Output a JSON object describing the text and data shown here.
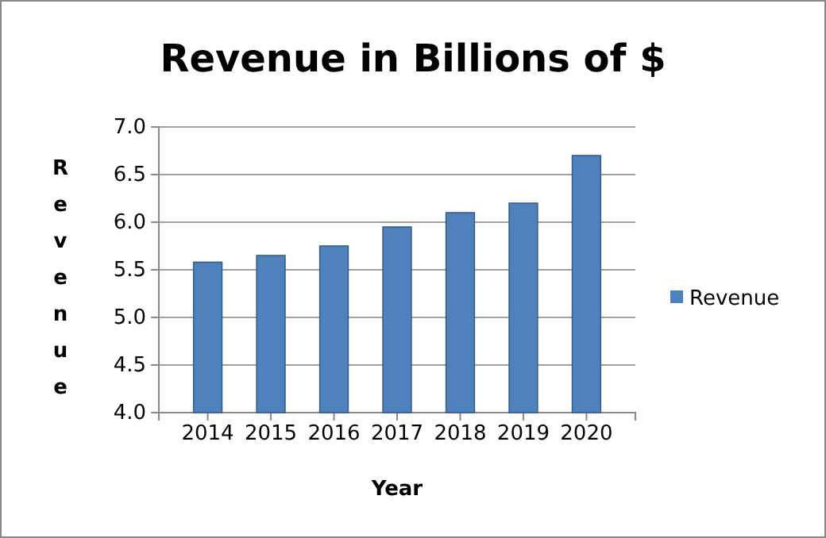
{
  "chart_data": {
    "type": "bar",
    "title": "Revenue in Billions of $",
    "xlabel": "Year",
    "ylabel": "Revenue",
    "categories": [
      "2014",
      "2015",
      "2016",
      "2017",
      "2018",
      "2019",
      "2020"
    ],
    "series": [
      {
        "name": "Revenue",
        "color": "#4f81bd",
        "values": [
          5.58,
          5.65,
          5.75,
          5.95,
          6.1,
          6.2,
          6.7
        ]
      }
    ],
    "ylim": [
      4.0,
      7.0
    ],
    "yticks": [
      {
        "value": 4,
        "label": "4.0"
      },
      {
        "value": 4.5,
        "label": "4.5"
      },
      {
        "value": 5,
        "label": "5.0"
      },
      {
        "value": 5.5,
        "label": "5.5"
      },
      {
        "value": 6,
        "label": "6.0"
      },
      {
        "value": 6.5,
        "label": "6.5"
      },
      {
        "value": 7,
        "label": "7.0"
      }
    ],
    "grid": "y",
    "legend": "right"
  }
}
